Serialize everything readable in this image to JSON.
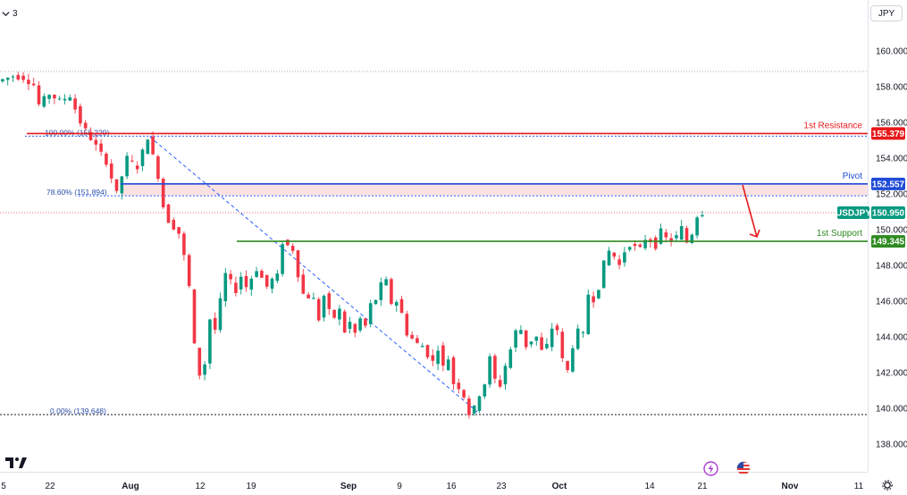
{
  "header": {
    "interval_badge": "3",
    "currency_label": "JPY"
  },
  "chart_data": {
    "type": "candlestick",
    "symbol": "USDJPY",
    "last_price": 150.95,
    "ylim": [
      137.0,
      161.2
    ],
    "y_ticks": [
      "160.000",
      "158.000",
      "156.000",
      "154.000",
      "152.000",
      "150.000",
      "148.000",
      "146.000",
      "144.000",
      "142.000",
      "140.000",
      "138.000"
    ],
    "x_ticks": [
      "5",
      "22",
      "Aug",
      "12",
      "19",
      "Sep",
      "9",
      "16",
      "23",
      "Oct",
      "14",
      "21",
      "Nov",
      "11"
    ],
    "series_path": [
      [
        0,
        158.3
      ],
      [
        3,
        158.6
      ],
      [
        5,
        158.5
      ],
      [
        7,
        158.1
      ],
      [
        8,
        157.0
      ],
      [
        10,
        157.6
      ],
      [
        12,
        157.2
      ],
      [
        14,
        157.5
      ],
      [
        16,
        156.0
      ],
      [
        18,
        155.1
      ],
      [
        21,
        153.8
      ],
      [
        23,
        152.0
      ],
      [
        25,
        154.0
      ],
      [
        27,
        153.5
      ],
      [
        29,
        155.2
      ],
      [
        31,
        153.0
      ],
      [
        32,
        151.3
      ],
      [
        33,
        150.5
      ],
      [
        35,
        149.8
      ],
      [
        36,
        148.5
      ],
      [
        37,
        146.8
      ],
      [
        38,
        143.5
      ],
      [
        39,
        141.9
      ],
      [
        40,
        142.5
      ],
      [
        41,
        145.0
      ],
      [
        42,
        144.4
      ],
      [
        43,
        146.0
      ],
      [
        44,
        147.5
      ],
      [
        46,
        146.6
      ],
      [
        47,
        147.4
      ],
      [
        48,
        146.8
      ],
      [
        50,
        147.8
      ],
      [
        52,
        146.8
      ],
      [
        53,
        147.2
      ],
      [
        54,
        147.4
      ],
      [
        55,
        149.3
      ],
      [
        57,
        148.9
      ],
      [
        58,
        147.5
      ],
      [
        59,
        146.4
      ],
      [
        61,
        146.1
      ],
      [
        62,
        145.0
      ],
      [
        63,
        146.3
      ],
      [
        64,
        145.4
      ],
      [
        65,
        145.1
      ],
      [
        66,
        145.5
      ],
      [
        67,
        144.3
      ],
      [
        68,
        144.8
      ],
      [
        69,
        144.2
      ],
      [
        70,
        145.0
      ],
      [
        71,
        144.6
      ],
      [
        72,
        145.8
      ],
      [
        73,
        146.1
      ],
      [
        74,
        146.9
      ],
      [
        75,
        147.1
      ],
      [
        76,
        145.9
      ],
      [
        77,
        146.0
      ],
      [
        78,
        145.3
      ],
      [
        79,
        144.2
      ],
      [
        80,
        143.9
      ],
      [
        81,
        143.6
      ],
      [
        82,
        143.5
      ],
      [
        83,
        143.0
      ],
      [
        84,
        142.6
      ],
      [
        85,
        143.4
      ],
      [
        86,
        142.3
      ],
      [
        87,
        142.8
      ],
      [
        88,
        141.4
      ],
      [
        89,
        141.2
      ],
      [
        90,
        140.7
      ],
      [
        91,
        139.7
      ],
      [
        92,
        140.0
      ],
      [
        93,
        140.8
      ],
      [
        94,
        141.4
      ],
      [
        95,
        142.8
      ],
      [
        96,
        141.6
      ],
      [
        97,
        141.3
      ],
      [
        98,
        142.4
      ],
      [
        99,
        143.3
      ],
      [
        100,
        144.3
      ],
      [
        101,
        144.4
      ],
      [
        102,
        143.5
      ],
      [
        103,
        143.8
      ],
      [
        104,
        144.0
      ],
      [
        105,
        143.2
      ],
      [
        106,
        143.5
      ],
      [
        107,
        144.5
      ],
      [
        108,
        144.4
      ],
      [
        109,
        142.7
      ],
      [
        110,
        142.1
      ],
      [
        111,
        143.5
      ],
      [
        112,
        144.3
      ],
      [
        113,
        144.1
      ],
      [
        114,
        146.4
      ],
      [
        115,
        146.1
      ],
      [
        116,
        146.8
      ],
      [
        117,
        148.1
      ],
      [
        118,
        148.8
      ],
      [
        119,
        148.5
      ],
      [
        120,
        148.0
      ],
      [
        121,
        148.8
      ],
      [
        122,
        149.2
      ],
      [
        123,
        149.0
      ],
      [
        124,
        148.9
      ],
      [
        125,
        149.5
      ],
      [
        126,
        149.4
      ],
      [
        127,
        149.1
      ],
      [
        128,
        149.9
      ],
      [
        129,
        149.5
      ],
      [
        130,
        149.4
      ],
      [
        131,
        149.6
      ],
      [
        132,
        150.1
      ],
      [
        133,
        149.3
      ],
      [
        134,
        149.8
      ],
      [
        135,
        150.8
      ],
      [
        136,
        150.95
      ]
    ],
    "levels": [
      {
        "name": "1st Resistance",
        "value": 155.379,
        "price_label": "155.379",
        "color": "#e8191a"
      },
      {
        "name": "Pivot",
        "value": 152.557,
        "price_label": "152.557",
        "color": "#1f4bd8"
      },
      {
        "name": "1st Support",
        "value": 149.345,
        "price_label": "149.345",
        "color": "#2e8b20"
      }
    ],
    "fibonacci": [
      {
        "label": "100.00% (155.229)",
        "value": 155.229
      },
      {
        "label": "78.60% (151.894)",
        "value": 151.894
      },
      {
        "label": "0.00% (139.648)",
        "value": 139.648
      }
    ],
    "trendline": {
      "from": [
        28.9,
        155.2
      ],
      "to": [
        92.1,
        139.8
      ]
    },
    "last_price_label": {
      "symbol": "USDJPY",
      "value": "150.950"
    },
    "forecast_arrow": {
      "from": [
        149.6,
        152.5
      ],
      "to": [
        152.8,
        149.6
      ],
      "color": "#e8191a"
    },
    "colors": {
      "up": "#089981",
      "down": "#f23645",
      "resistance": "#e8191a",
      "pivot": "#1f4bd8",
      "support": "#2e8b20",
      "fib": "#2962ff"
    }
  }
}
